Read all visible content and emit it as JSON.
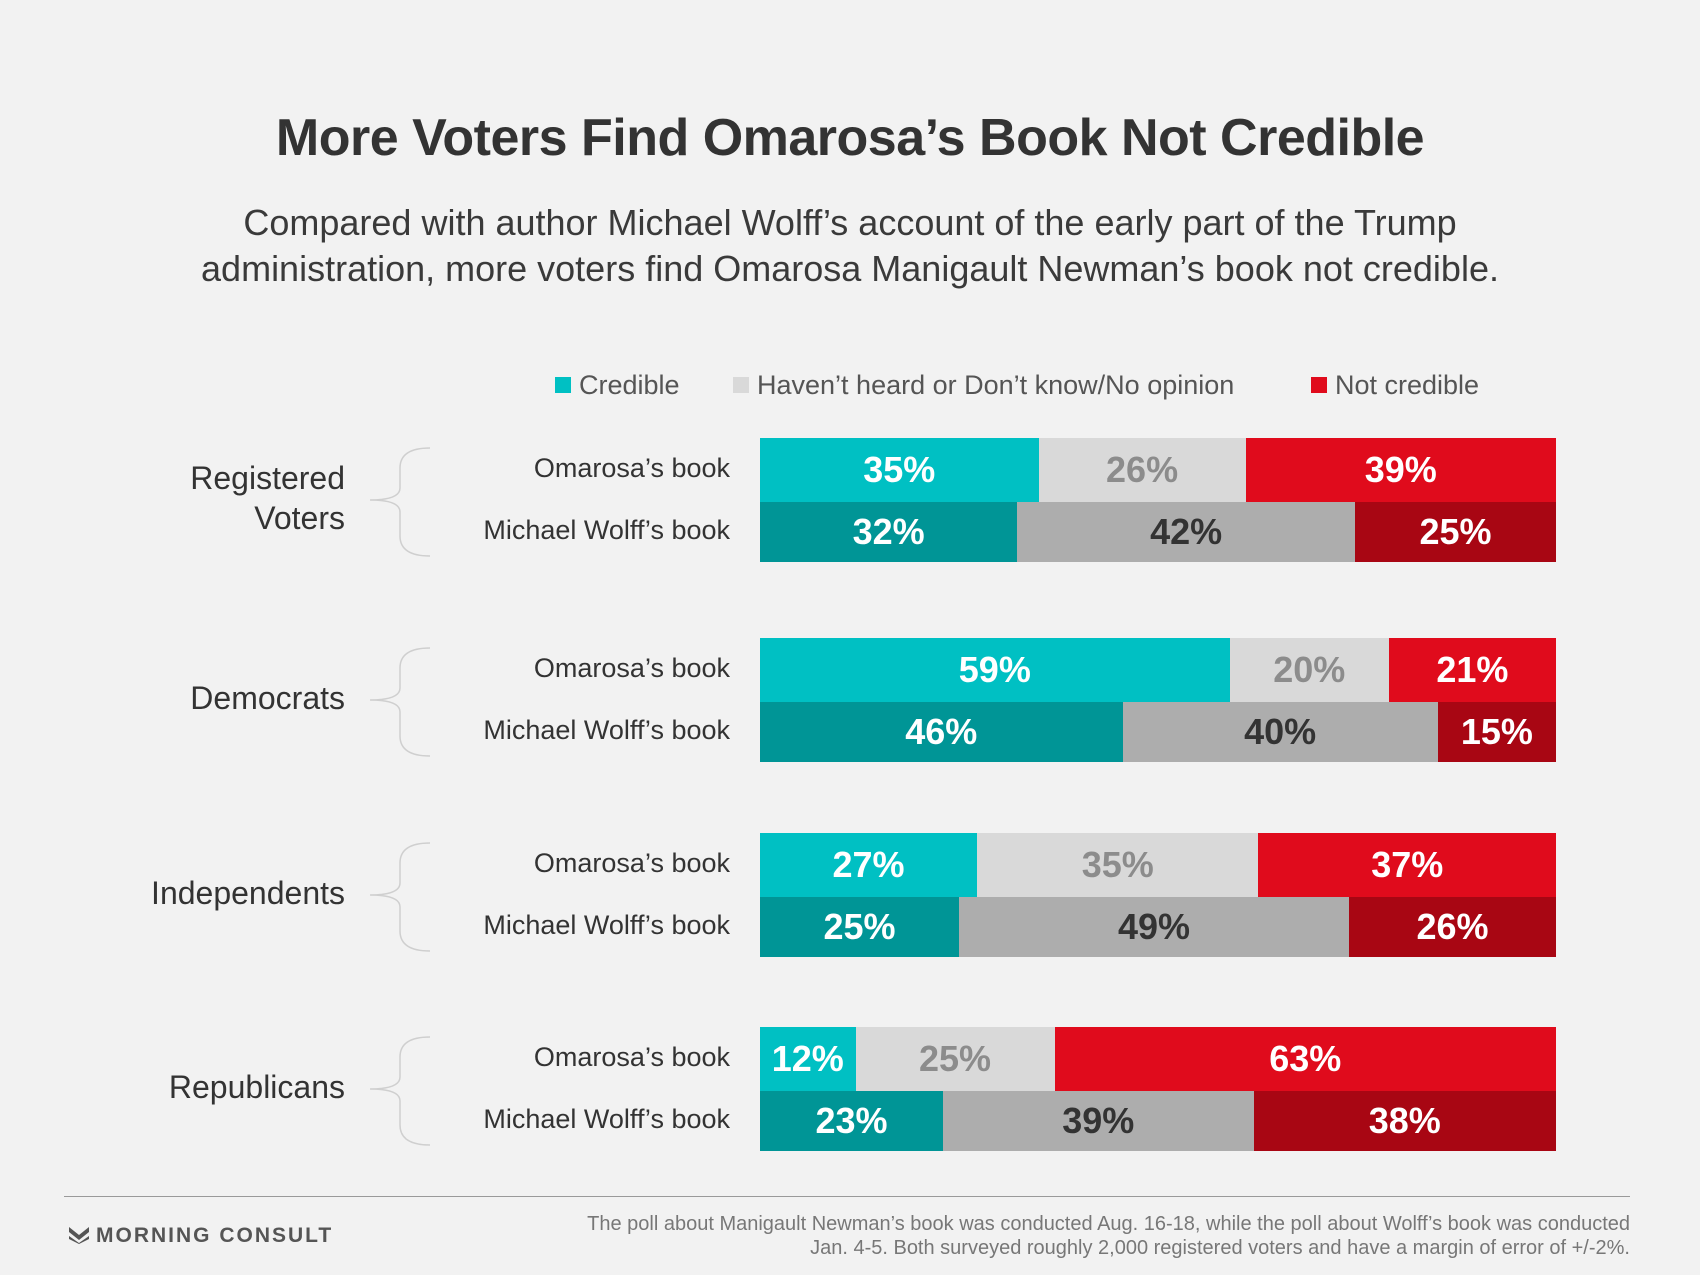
{
  "title": "More Voters Find Omarosa’s Book Not Credible",
  "subtitle": "Compared with author Michael Wolff’s account of the early part of the Trump administration, more voters find Omarosa Manigault Newman’s book not credible.",
  "legend": [
    {
      "label": "Credible",
      "color": "#00c0c3"
    },
    {
      "label": "Haven’t heard or Don’t know/No opinion",
      "color": "#d9d9d9"
    },
    {
      "label": "Not credible",
      "color": "#e00b1c"
    }
  ],
  "chart_data": {
    "type": "bar",
    "stacked": true,
    "orientation": "horizontal",
    "unit": "%",
    "categories": [
      "Credible",
      "Haven’t heard or Don’t know/No opinion",
      "Not credible"
    ],
    "groups": [
      {
        "name": "Registered\nVoters",
        "rows": [
          {
            "label": "Omarosa’s book",
            "values": [
              35,
              26,
              39
            ]
          },
          {
            "label": "Michael Wolff’s book",
            "values": [
              32,
              42,
              25
            ]
          }
        ]
      },
      {
        "name": "Democrats",
        "rows": [
          {
            "label": "Omarosa’s book",
            "values": [
              59,
              20,
              21
            ]
          },
          {
            "label": "Michael Wolff’s book",
            "values": [
              46,
              40,
              15
            ]
          }
        ]
      },
      {
        "name": "Independents",
        "rows": [
          {
            "label": "Omarosa’s book",
            "values": [
              27,
              35,
              37
            ]
          },
          {
            "label": "Michael Wolff’s book",
            "values": [
              25,
              49,
              26
            ]
          }
        ]
      },
      {
        "name": "Republicans",
        "rows": [
          {
            "label": "Omarosa’s book",
            "values": [
              12,
              25,
              63
            ]
          },
          {
            "label": "Michael Wolff’s book",
            "values": [
              23,
              39,
              38
            ]
          }
        ]
      }
    ],
    "colors": {
      "omarosa": [
        "#00c0c3",
        "#d9d9d9",
        "#e00b1c"
      ],
      "wolff": [
        "#009596",
        "#adadad",
        "#a80613"
      ]
    },
    "label_colors": {
      "omarosa": [
        "#ffffff",
        "#8c8c8c",
        "#ffffff"
      ],
      "wolff": [
        "#ffffff",
        "#333333",
        "#ffffff"
      ]
    }
  },
  "footer": {
    "brand": "MORNING CONSULT",
    "note": "The poll about Manigault Newman’s book was conducted Aug. 16-18, while the poll about Wolff’s book was conducted Jan. 4-5. Both surveyed roughly 2,000 registered voters and have a margin of error of +/-2%."
  }
}
